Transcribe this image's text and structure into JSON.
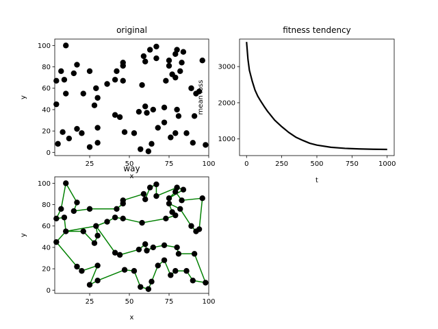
{
  "chart_data": [
    {
      "type": "scatter",
      "title": "original",
      "xlabel": "x",
      "ylabel": "y",
      "xlim": [
        3,
        100
      ],
      "ylim": [
        -3,
        106
      ],
      "xticks": [
        "25",
        "50",
        "75",
        "100"
      ],
      "yticks": [
        "0",
        "20",
        "40",
        "60",
        "80",
        "100"
      ],
      "marker_color": "#000000",
      "points": [
        [
          10,
          100
        ],
        [
          98,
          7
        ],
        [
          4,
          67
        ],
        [
          7,
          76
        ],
        [
          9,
          68
        ],
        [
          15,
          74
        ],
        [
          17,
          82
        ],
        [
          10,
          55
        ],
        [
          21,
          55
        ],
        [
          25,
          76
        ],
        [
          4,
          45
        ],
        [
          8,
          19
        ],
        [
          12,
          13
        ],
        [
          5,
          8
        ],
        [
          17,
          22
        ],
        [
          20,
          18
        ],
        [
          25,
          5
        ],
        [
          30,
          9
        ],
        [
          30,
          23
        ],
        [
          28,
          44
        ],
        [
          30,
          51
        ],
        [
          29,
          60
        ],
        [
          36,
          64
        ],
        [
          41,
          68
        ],
        [
          42,
          76
        ],
        [
          46,
          67
        ],
        [
          46,
          81
        ],
        [
          46,
          84
        ],
        [
          58,
          63
        ],
        [
          59,
          90
        ],
        [
          60,
          85
        ],
        [
          63,
          96
        ],
        [
          67,
          99
        ],
        [
          67,
          88
        ],
        [
          80,
          96
        ],
        [
          75,
          86
        ],
        [
          79,
          92
        ],
        [
          84,
          94
        ],
        [
          83,
          84
        ],
        [
          75,
          81
        ],
        [
          77,
          73
        ],
        [
          79,
          70
        ],
        [
          73,
          67
        ],
        [
          82,
          76
        ],
        [
          89,
          60
        ],
        [
          94,
          57
        ],
        [
          92,
          55
        ],
        [
          96,
          86
        ],
        [
          60,
          43
        ],
        [
          56,
          38
        ],
        [
          61,
          37
        ],
        [
          65,
          40
        ],
        [
          72,
          42
        ],
        [
          80,
          40
        ],
        [
          81,
          34
        ],
        [
          91,
          34
        ],
        [
          41,
          35
        ],
        [
          44,
          33
        ],
        [
          47,
          19
        ],
        [
          53,
          18
        ],
        [
          57,
          3
        ],
        [
          62,
          1
        ],
        [
          64,
          8
        ],
        [
          68,
          23
        ],
        [
          72,
          28
        ],
        [
          76,
          14
        ],
        [
          79,
          18
        ],
        [
          86,
          18
        ],
        [
          90,
          9
        ]
      ]
    },
    {
      "type": "line",
      "title": "fitness tendency",
      "xlabel": "t",
      "ylabel": "mean loss",
      "xlim": [
        -50,
        1050
      ],
      "ylim": [
        540,
        3760
      ],
      "xticks": [
        "0",
        "250",
        "500",
        "750",
        "1000"
      ],
      "yticks": [
        "1000",
        "2000",
        "3000"
      ],
      "line_color": "#000000",
      "x": [
        0,
        10,
        20,
        40,
        60,
        80,
        100,
        125,
        150,
        200,
        250,
        300,
        350,
        400,
        450,
        500,
        600,
        700,
        800,
        900,
        1000
      ],
      "y": [
        3680,
        3200,
        2900,
        2600,
        2350,
        2180,
        2050,
        1900,
        1760,
        1520,
        1340,
        1180,
        1050,
        960,
        880,
        830,
        770,
        740,
        725,
        715,
        710
      ]
    },
    {
      "type": "line",
      "title": "way",
      "xlabel": "x",
      "ylabel": "y",
      "xlim": [
        3,
        100
      ],
      "ylim": [
        -3,
        106
      ],
      "xticks": [
        "25",
        "50",
        "75",
        "100"
      ],
      "yticks": [
        "0",
        "20",
        "40",
        "60",
        "80",
        "100"
      ],
      "line_color": "#008000",
      "marker_color": "#000000",
      "route": [
        [
          10,
          100
        ],
        [
          17,
          82
        ],
        [
          15,
          74
        ],
        [
          25,
          76
        ],
        [
          42,
          76
        ],
        [
          46,
          81
        ],
        [
          46,
          84
        ],
        [
          59,
          90
        ],
        [
          60,
          85
        ],
        [
          63,
          96
        ],
        [
          67,
          99
        ],
        [
          67,
          88
        ],
        [
          80,
          96
        ],
        [
          84,
          94
        ],
        [
          75,
          86
        ],
        [
          79,
          92
        ],
        [
          83,
          84
        ],
        [
          96,
          86
        ],
        [
          94,
          57
        ],
        [
          92,
          55
        ],
        [
          89,
          60
        ],
        [
          82,
          76
        ],
        [
          75,
          81
        ],
        [
          77,
          73
        ],
        [
          79,
          70
        ],
        [
          73,
          67
        ],
        [
          58,
          63
        ],
        [
          46,
          67
        ],
        [
          41,
          68
        ],
        [
          36,
          64
        ],
        [
          29,
          60
        ],
        [
          30,
          51
        ],
        [
          28,
          44
        ],
        [
          21,
          55
        ],
        [
          10,
          55
        ],
        [
          4,
          45
        ],
        [
          17,
          22
        ],
        [
          20,
          18
        ],
        [
          30,
          23
        ],
        [
          25,
          5
        ],
        [
          30,
          9
        ],
        [
          47,
          19
        ],
        [
          53,
          18
        ],
        [
          57,
          3
        ],
        [
          62,
          1
        ],
        [
          64,
          8
        ],
        [
          68,
          23
        ],
        [
          72,
          28
        ],
        [
          76,
          14
        ],
        [
          79,
          18
        ],
        [
          86,
          18
        ],
        [
          90,
          9
        ],
        [
          98,
          7
        ],
        [
          91,
          34
        ],
        [
          81,
          34
        ],
        [
          80,
          40
        ],
        [
          72,
          42
        ],
        [
          65,
          40
        ],
        [
          61,
          37
        ],
        [
          60,
          43
        ],
        [
          56,
          38
        ],
        [
          44,
          33
        ],
        [
          41,
          35
        ],
        [
          29,
          60
        ],
        [
          10,
          55
        ],
        [
          9,
          68
        ],
        [
          4,
          67
        ],
        [
          7,
          76
        ],
        [
          10,
          100
        ]
      ]
    }
  ]
}
